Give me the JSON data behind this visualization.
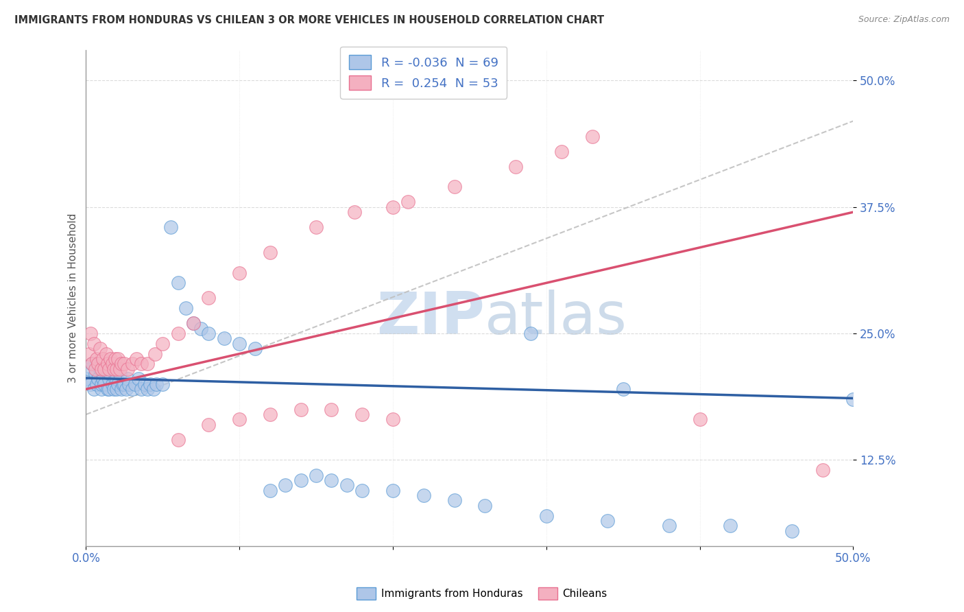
{
  "title": "IMMIGRANTS FROM HONDURAS VS CHILEAN 3 OR MORE VEHICLES IN HOUSEHOLD CORRELATION CHART",
  "source": "Source: ZipAtlas.com",
  "ylabel": "3 or more Vehicles in Household",
  "legend_bottom": [
    "Immigrants from Honduras",
    "Chileans"
  ],
  "blue_scatter_color": "#aec6e8",
  "pink_scatter_color": "#f4b0c0",
  "blue_edge_color": "#5b9bd5",
  "pink_edge_color": "#e87090",
  "blue_line_color": "#2e5fa3",
  "pink_line_color": "#d95070",
  "gray_line_color": "#c0c0c0",
  "background_color": "#ffffff",
  "blue_points_x": [
    0.0,
    0.002,
    0.003,
    0.004,
    0.005,
    0.006,
    0.007,
    0.008,
    0.009,
    0.01,
    0.01,
    0.011,
    0.012,
    0.013,
    0.014,
    0.015,
    0.015,
    0.016,
    0.017,
    0.018,
    0.019,
    0.02,
    0.02,
    0.021,
    0.022,
    0.023,
    0.024,
    0.025,
    0.026,
    0.027,
    0.028,
    0.03,
    0.032,
    0.034,
    0.036,
    0.038,
    0.04,
    0.042,
    0.044,
    0.046,
    0.05,
    0.055,
    0.06,
    0.065,
    0.07,
    0.075,
    0.08,
    0.09,
    0.1,
    0.11,
    0.12,
    0.13,
    0.14,
    0.15,
    0.16,
    0.17,
    0.18,
    0.2,
    0.22,
    0.24,
    0.26,
    0.3,
    0.34,
    0.38,
    0.42,
    0.46,
    0.5,
    0.29,
    0.35
  ],
  "blue_points_y": [
    0.205,
    0.215,
    0.2,
    0.22,
    0.195,
    0.21,
    0.2,
    0.205,
    0.215,
    0.195,
    0.2,
    0.205,
    0.2,
    0.215,
    0.195,
    0.195,
    0.205,
    0.21,
    0.2,
    0.195,
    0.205,
    0.195,
    0.205,
    0.2,
    0.21,
    0.195,
    0.2,
    0.2,
    0.195,
    0.205,
    0.2,
    0.195,
    0.2,
    0.205,
    0.195,
    0.2,
    0.195,
    0.2,
    0.195,
    0.2,
    0.2,
    0.355,
    0.3,
    0.275,
    0.26,
    0.255,
    0.25,
    0.245,
    0.24,
    0.235,
    0.095,
    0.1,
    0.105,
    0.11,
    0.105,
    0.1,
    0.095,
    0.095,
    0.09,
    0.085,
    0.08,
    0.07,
    0.065,
    0.06,
    0.06,
    0.055,
    0.185,
    0.25,
    0.195
  ],
  "pink_points_x": [
    0.002,
    0.003,
    0.004,
    0.005,
    0.006,
    0.007,
    0.008,
    0.009,
    0.01,
    0.011,
    0.012,
    0.013,
    0.014,
    0.015,
    0.016,
    0.017,
    0.018,
    0.019,
    0.02,
    0.021,
    0.022,
    0.023,
    0.025,
    0.027,
    0.03,
    0.033,
    0.036,
    0.04,
    0.045,
    0.05,
    0.06,
    0.07,
    0.08,
    0.1,
    0.12,
    0.15,
    0.175,
    0.2,
    0.21,
    0.24,
    0.28,
    0.31,
    0.33,
    0.06,
    0.08,
    0.1,
    0.12,
    0.14,
    0.16,
    0.18,
    0.2,
    0.4,
    0.48
  ],
  "pink_points_y": [
    0.23,
    0.25,
    0.22,
    0.24,
    0.215,
    0.225,
    0.22,
    0.235,
    0.215,
    0.225,
    0.215,
    0.23,
    0.22,
    0.215,
    0.225,
    0.22,
    0.215,
    0.225,
    0.215,
    0.225,
    0.215,
    0.22,
    0.22,
    0.215,
    0.22,
    0.225,
    0.22,
    0.22,
    0.23,
    0.24,
    0.25,
    0.26,
    0.285,
    0.31,
    0.33,
    0.355,
    0.37,
    0.375,
    0.38,
    0.395,
    0.415,
    0.43,
    0.445,
    0.145,
    0.16,
    0.165,
    0.17,
    0.175,
    0.175,
    0.17,
    0.165,
    0.165,
    0.115
  ],
  "blue_line_x": [
    0.0,
    0.5
  ],
  "blue_line_y": [
    0.206,
    0.186
  ],
  "pink_line_x": [
    0.0,
    0.5
  ],
  "pink_line_y": [
    0.195,
    0.37
  ],
  "gray_line_x": [
    0.0,
    0.5
  ],
  "gray_line_y": [
    0.17,
    0.46
  ],
  "xlim": [
    0.0,
    0.5
  ],
  "ylim": [
    0.04,
    0.53
  ],
  "xtick_left": "0.0%",
  "xtick_right": "50.0%",
  "ytick_labels": [
    "12.5%",
    "25.0%",
    "37.5%",
    "50.0%"
  ],
  "ytick_vals": [
    0.125,
    0.25,
    0.375,
    0.5
  ],
  "watermark_text": "ZIPatlas",
  "watermark_color": "#d0dff0"
}
